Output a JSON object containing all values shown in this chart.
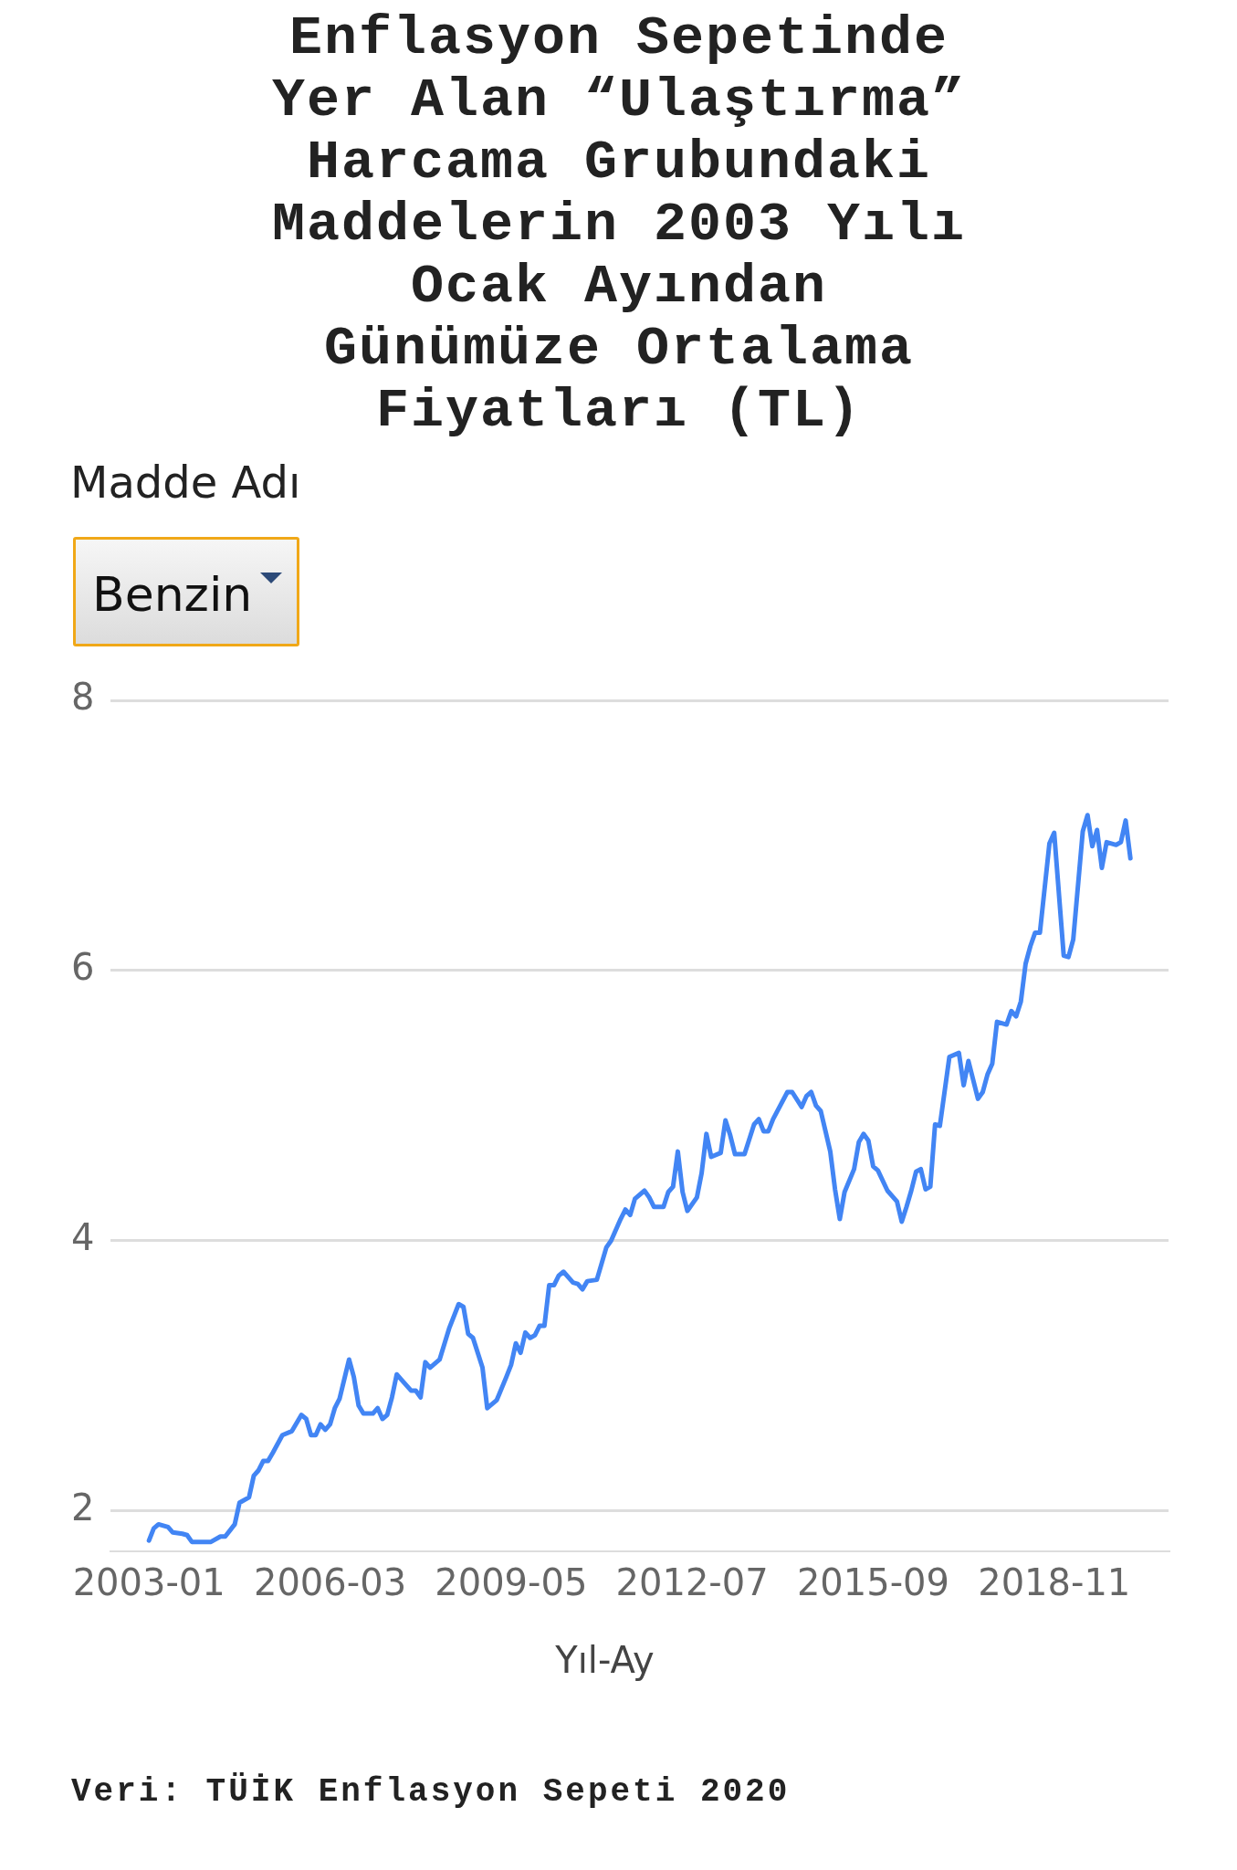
{
  "chart_data": {
    "type": "line",
    "title": "Enflasyon Sepetinde Yer Alan “Ulaştırma” Harcama Grubundaki Maddelerin 2003 Yılı Ocak Ayından Günümüze Ortalama Fiyatları (TL)",
    "xlabel": "Yıl-Ay",
    "annotations": [
      "Madde Adı",
      "Benzin",
      "Veri: TÜİK Enflasyon Sepeti 2020"
    ],
    "x": [
      "2003-01",
      "2003-02",
      "2003-03",
      "2003-05",
      "2003-06",
      "2003-08",
      "2003-09",
      "2003-10",
      "2004-02",
      "2004-04",
      "2004-05",
      "2004-07",
      "2004-08",
      "2004-10",
      "2004-11",
      "2004-12",
      "2005-01",
      "2005-02",
      "2005-03",
      "2005-05",
      "2005-07",
      "2005-09",
      "2005-10",
      "2005-11",
      "2005-12",
      "2006-01",
      "2006-02",
      "2006-03",
      "2006-04",
      "2006-05",
      "2006-07",
      "2006-08",
      "2006-09",
      "2006-10",
      "2006-12",
      "2007-01",
      "2007-02",
      "2007-03",
      "2007-04",
      "2007-05",
      "2007-06",
      "2007-08",
      "2007-09",
      "2007-10",
      "2007-11",
      "2007-12",
      "2008-02",
      "2008-04",
      "2008-06",
      "2008-07",
      "2008-08",
      "2008-09",
      "2008-11",
      "2008-12",
      "2009-02",
      "2009-04",
      "2009-05",
      "2009-06",
      "2009-07",
      "2009-08",
      "2009-09",
      "2009-10",
      "2009-11",
      "2009-12",
      "2010-01",
      "2010-02",
      "2010-03",
      "2010-04",
      "2010-06",
      "2010-07",
      "2010-08",
      "2010-09",
      "2010-11",
      "2011-01",
      "2011-02",
      "2011-04",
      "2011-05",
      "2011-06",
      "2011-07",
      "2011-09",
      "2011-10",
      "2011-11",
      "2012-01",
      "2012-02",
      "2012-03",
      "2012-04",
      "2012-05",
      "2012-06",
      "2012-08",
      "2012-09",
      "2012-10",
      "2012-11",
      "2013-01",
      "2013-02",
      "2013-03",
      "2013-04",
      "2013-06",
      "2013-08",
      "2013-09",
      "2013-10",
      "2013-11",
      "2013-12",
      "2014-03",
      "2014-04",
      "2014-06",
      "2014-07",
      "2014-08",
      "2014-09",
      "2014-10",
      "2014-11",
      "2014-12",
      "2015-01",
      "2015-02",
      "2015-03",
      "2015-05",
      "2015-06",
      "2015-07",
      "2015-08",
      "2015-09",
      "2015-10",
      "2015-12",
      "2016-02",
      "2016-03",
      "2016-04",
      "2016-05",
      "2016-06",
      "2016-07",
      "2016-08",
      "2016-09",
      "2016-10",
      "2016-11",
      "2017-01",
      "2017-03",
      "2017-04",
      "2017-05",
      "2017-07",
      "2017-08",
      "2017-09",
      "2017-10",
      "2017-11",
      "2018-01",
      "2018-02",
      "2018-03",
      "2018-04",
      "2018-05",
      "2018-06",
      "2018-07",
      "2018-08",
      "2018-10",
      "2018-11",
      "2019-01",
      "2019-02",
      "2019-03",
      "2019-05",
      "2019-06",
      "2019-07",
      "2019-08",
      "2019-09",
      "2019-10",
      "2019-12",
      "2020-01",
      "2020-02",
      "2020-03"
    ],
    "series": [
      {
        "color": "#4285f4",
        "values": [
          1.78,
          1.87,
          1.9,
          1.88,
          1.84,
          1.83,
          1.82,
          1.77,
          1.77,
          1.81,
          1.81,
          1.9,
          2.06,
          2.1,
          2.26,
          2.3,
          2.37,
          2.37,
          2.43,
          2.56,
          2.59,
          2.71,
          2.68,
          2.56,
          2.56,
          2.64,
          2.6,
          2.64,
          2.76,
          2.83,
          3.12,
          2.99,
          2.78,
          2.72,
          2.72,
          2.76,
          2.68,
          2.71,
          2.84,
          3.01,
          2.97,
          2.89,
          2.89,
          2.84,
          3.1,
          3.06,
          3.12,
          3.35,
          3.53,
          3.51,
          3.31,
          3.28,
          3.06,
          2.76,
          2.82,
          2.99,
          3.08,
          3.24,
          3.17,
          3.32,
          3.28,
          3.3,
          3.37,
          3.37,
          3.67,
          3.67,
          3.74,
          3.77,
          3.69,
          3.68,
          3.64,
          3.7,
          3.71,
          3.95,
          4.0,
          4.16,
          4.23,
          4.19,
          4.31,
          4.37,
          4.32,
          4.25,
          4.25,
          4.36,
          4.4,
          4.66,
          4.36,
          4.22,
          4.32,
          4.5,
          4.79,
          4.62,
          4.65,
          4.89,
          4.78,
          4.64,
          4.64,
          4.86,
          4.9,
          4.81,
          4.81,
          4.9,
          5.1,
          5.1,
          4.99,
          5.07,
          5.1,
          5.0,
          4.96,
          4.81,
          4.66,
          4.38,
          4.16,
          4.36,
          4.53,
          4.73,
          4.79,
          4.74,
          4.55,
          4.52,
          4.37,
          4.29,
          4.14,
          4.25,
          4.37,
          4.51,
          4.53,
          4.38,
          4.4,
          4.86,
          4.85,
          5.36,
          5.39,
          5.15,
          5.33,
          5.05,
          5.1,
          5.23,
          5.31,
          5.62,
          5.6,
          5.7,
          5.66,
          5.77,
          6.05,
          6.18,
          6.28,
          6.28,
          6.94,
          7.02,
          6.11,
          6.1,
          6.23,
          7.03,
          7.15,
          6.92,
          7.04,
          6.76,
          6.95,
          6.93,
          6.95,
          7.11,
          6.83
        ]
      }
    ],
    "xlim": [
      "2002-05",
      "2020-11"
    ],
    "xticks": [
      "2003-01",
      "2006-03",
      "2009-05",
      "2012-07",
      "2015-09",
      "2018-11"
    ],
    "ylim": [
      1.7,
      8
    ],
    "yticks": [
      2,
      4,
      6,
      8
    ],
    "grid": "y",
    "legend": false,
    "marker": "none",
    "line_style": "solid"
  }
}
